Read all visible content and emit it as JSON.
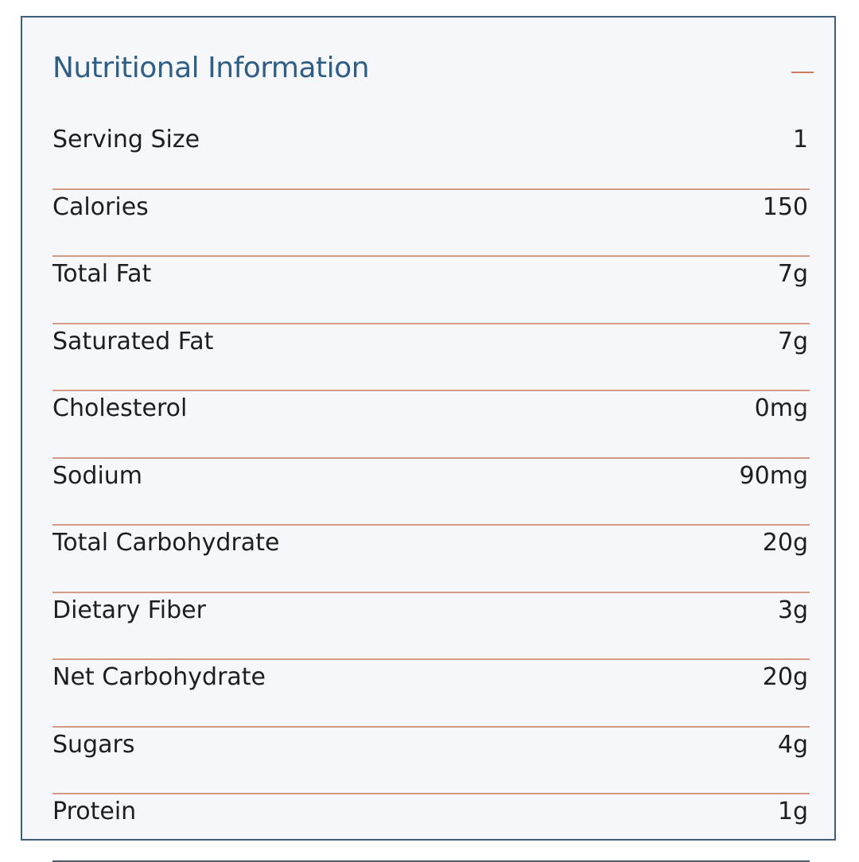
{
  "panel": {
    "title": "Nutritional Information",
    "collapse_icon": "minus-icon",
    "colors": {
      "title": "#2f5f85",
      "accent": "#d07a5f",
      "divider": "#d49a86",
      "border": "#3d5d7a",
      "background": "#f6f7fb",
      "text": "#1e1e1e"
    }
  },
  "rows": [
    {
      "label": "Serving Size",
      "value": "1"
    },
    {
      "label": "Calories",
      "value": "150"
    },
    {
      "label": "Total Fat",
      "value": "7g"
    },
    {
      "label": "Saturated Fat",
      "value": "7g"
    },
    {
      "label": "Cholesterol",
      "value": "0mg"
    },
    {
      "label": "Sodium",
      "value": "90mg"
    },
    {
      "label": "Total Carbohydrate",
      "value": "20g"
    },
    {
      "label": "Dietary Fiber",
      "value": "3g"
    },
    {
      "label": "Net Carbohydrate",
      "value": "20g"
    },
    {
      "label": "Sugars",
      "value": "4g"
    },
    {
      "label": "Protein",
      "value": "1g"
    }
  ]
}
